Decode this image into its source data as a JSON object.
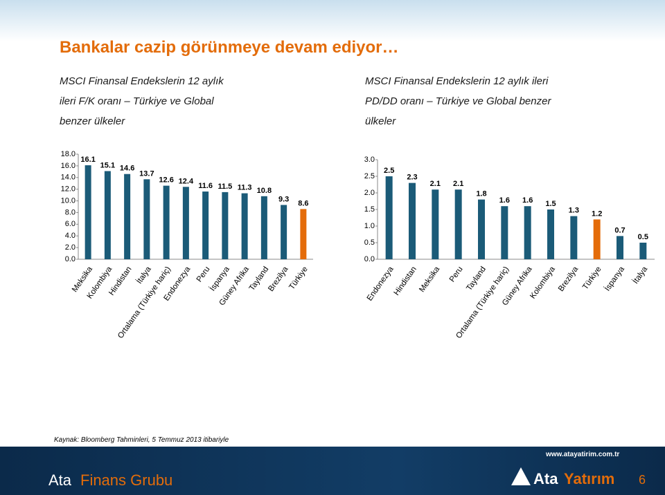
{
  "slide": {
    "title": "Bankalar cazip görünmeye devam ediyor…",
    "source": "Kaynak: Bloomberg Tahminleri, 5 Temmuz 2013 itibariyle",
    "url": "www.atayatirim.com.tr",
    "brand_a": "Ata",
    "brand_b": "Finans Grubu",
    "logo_a": "Ata",
    "logo_b": "Yatırım",
    "page": "6"
  },
  "chart_data": [
    {
      "type": "bar",
      "subtitle_lines": [
        "MSCI  Finansal  Endekslerin  12  aylık",
        "ileri  F/K  oranı  –  Türkiye  ve  Global",
        "benzer ülkeler"
      ],
      "categories": [
        "Meksika",
        "Kolombiya",
        "Hindistan",
        "İtalya",
        "Ortalama (Türkiye hariç)",
        "Endonezya",
        "Peru",
        "İspanya",
        "Güney Afrika",
        "Tayland",
        "Brezilya",
        "Türkiye"
      ],
      "values": [
        16.1,
        15.1,
        14.6,
        13.7,
        12.6,
        12.4,
        11.6,
        11.5,
        11.3,
        10.8,
        9.3,
        8.6
      ],
      "colors": [
        "#1b5b78",
        "#1b5b78",
        "#1b5b78",
        "#1b5b78",
        "#1b5b78",
        "#1b5b78",
        "#1b5b78",
        "#1b5b78",
        "#1b5b78",
        "#1b5b78",
        "#1b5b78",
        "#e46c0a"
      ],
      "ylim": [
        0,
        18
      ],
      "yticks": [
        {
          "value": 0,
          "label": "0.0"
        },
        {
          "value": 2,
          "label": "2.0"
        },
        {
          "value": 4,
          "label": "4.0"
        },
        {
          "value": 6,
          "label": "6.0"
        },
        {
          "value": 8,
          "label": "8.0"
        },
        {
          "value": 10,
          "label": "10.0"
        },
        {
          "value": 12,
          "label": "12.0"
        },
        {
          "value": 14,
          "label": "14.0"
        },
        {
          "value": 16,
          "label": "16.0"
        },
        {
          "value": 18,
          "label": "18.0"
        }
      ]
    },
    {
      "type": "bar",
      "subtitle_lines": [
        "MSCI Finansal Endekslerin 12 aylık ileri",
        "PD/DD oranı – Türkiye ve Global benzer",
        "ülkeler"
      ],
      "categories": [
        "Endonezya",
        "Hindistan",
        "Meksika",
        "Peru",
        "Tayland",
        "Ortalama (Türkiye hariç)",
        "Güney Afrika",
        "Kolombiya",
        "Brezilya",
        "Türkiye",
        "İspanya",
        "İtalya"
      ],
      "values": [
        2.5,
        2.3,
        2.1,
        2.1,
        1.8,
        1.6,
        1.6,
        1.5,
        1.3,
        1.2,
        0.7,
        0.5
      ],
      "colors": [
        "#1b5b78",
        "#1b5b78",
        "#1b5b78",
        "#1b5b78",
        "#1b5b78",
        "#1b5b78",
        "#1b5b78",
        "#1b5b78",
        "#1b5b78",
        "#e46c0a",
        "#1b5b78",
        "#1b5b78"
      ],
      "ylim": [
        0,
        3
      ],
      "yticks": [
        {
          "value": 0,
          "label": "0.0"
        },
        {
          "value": 0.5,
          "label": "0.5"
        },
        {
          "value": 1,
          "label": "1.0"
        },
        {
          "value": 1.5,
          "label": "1.5"
        },
        {
          "value": 2,
          "label": "2.0"
        },
        {
          "value": 2.5,
          "label": "2.5"
        },
        {
          "value": 3,
          "label": "3.0"
        }
      ]
    }
  ]
}
